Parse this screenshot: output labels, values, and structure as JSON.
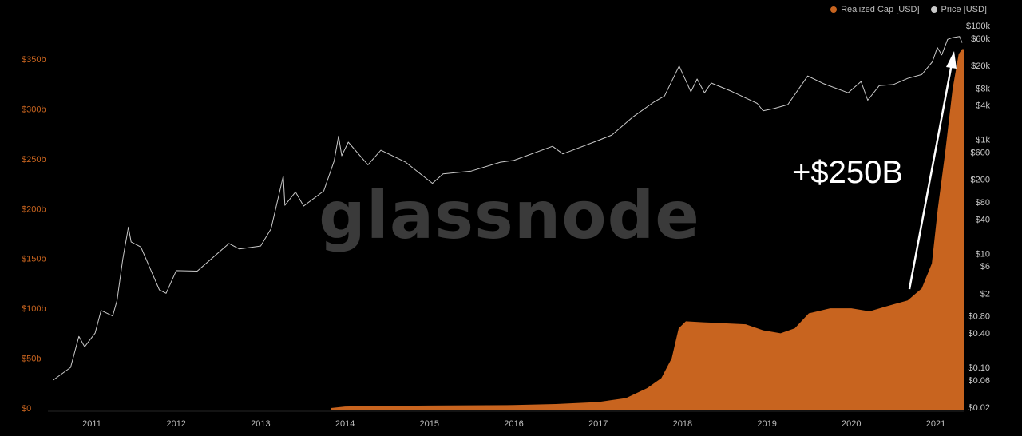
{
  "watermark": "glassnode",
  "annotation": "+$250B",
  "colors": {
    "background": "#000000",
    "realized_cap": "#c8641f",
    "price": "#c9c9c9",
    "left_axis": "#c8641f",
    "right_axis": "#c9c9c9",
    "x_axis": "#bdbdbd",
    "watermark": "#3a3a3a",
    "annotation": "#ffffff"
  },
  "chart_data": {
    "type": "area",
    "legend_position": "top-right",
    "grid": false,
    "x_ticks": [
      "2011",
      "2012",
      "2013",
      "2014",
      "2015",
      "2016",
      "2017",
      "2018",
      "2019",
      "2020",
      "2021"
    ],
    "y_left": {
      "ticks": [
        "$0",
        "$50b",
        "$100b",
        "$150b",
        "$200b",
        "$250b",
        "$300b",
        "$350b"
      ],
      "ylim": [
        0,
        350000000000
      ]
    },
    "y_right": {
      "scale": "log",
      "ticks": [
        "$100k",
        "$60k",
        "$20k",
        "$8k",
        "$4k",
        "$1k",
        "$600",
        "$200",
        "$80",
        "$40",
        "$10",
        "$6",
        "$2",
        "$0.80",
        "$0.40",
        "$0.10",
        "$0.06",
        "$0.02"
      ],
      "tick_values": [
        100000,
        60000,
        20000,
        8000,
        4000,
        1000,
        600,
        200,
        80,
        40,
        10,
        6,
        2,
        0.8,
        0.4,
        0.1,
        0.06,
        0.02
      ]
    },
    "series": [
      {
        "name": "Realized Cap [USD]",
        "axis": "left",
        "type": "area",
        "points": [
          [
            "2013-11-01",
            0
          ],
          [
            "2014-01-01",
            1.5
          ],
          [
            "2014-06-01",
            2.2
          ],
          [
            "2015-01-01",
            2.5
          ],
          [
            "2016-01-01",
            3
          ],
          [
            "2016-07-01",
            4
          ],
          [
            "2017-01-01",
            6
          ],
          [
            "2017-05-01",
            10
          ],
          [
            "2017-08-01",
            20
          ],
          [
            "2017-10-01",
            30
          ],
          [
            "2017-11-15",
            50
          ],
          [
            "2017-12-15",
            80
          ],
          [
            "2018-01-15",
            87
          ],
          [
            "2018-04-01",
            86
          ],
          [
            "2018-07-01",
            85
          ],
          [
            "2018-10-01",
            84
          ],
          [
            "2018-12-15",
            78
          ],
          [
            "2019-03-01",
            75
          ],
          [
            "2019-05-01",
            80
          ],
          [
            "2019-07-01",
            95
          ],
          [
            "2019-10-01",
            100
          ],
          [
            "2020-01-01",
            100
          ],
          [
            "2020-03-20",
            97
          ],
          [
            "2020-06-01",
            102
          ],
          [
            "2020-09-01",
            108
          ],
          [
            "2020-11-01",
            120
          ],
          [
            "2020-12-15",
            145
          ],
          [
            "2021-01-10",
            200
          ],
          [
            "2021-02-10",
            255
          ],
          [
            "2021-03-15",
            320
          ],
          [
            "2021-04-10",
            355
          ],
          [
            "2021-04-25",
            360
          ]
        ]
      },
      {
        "name": "Price [USD]",
        "axis": "right",
        "type": "line",
        "points": [
          [
            "2010-07-18",
            0.06
          ],
          [
            "2010-10-01",
            0.1
          ],
          [
            "2010-11-06",
            0.35
          ],
          [
            "2010-12-01",
            0.23
          ],
          [
            "2011-01-15",
            0.4
          ],
          [
            "2011-02-10",
            1.0
          ],
          [
            "2011-04-01",
            0.8
          ],
          [
            "2011-04-20",
            1.5
          ],
          [
            "2011-05-15",
            8
          ],
          [
            "2011-06-08",
            29
          ],
          [
            "2011-06-20",
            16
          ],
          [
            "2011-08-01",
            13
          ],
          [
            "2011-10-20",
            2.3
          ],
          [
            "2011-11-18",
            2.0
          ],
          [
            "2012-01-01",
            5
          ],
          [
            "2012-04-01",
            4.9
          ],
          [
            "2012-08-17",
            15
          ],
          [
            "2012-10-01",
            12
          ],
          [
            "2013-01-01",
            13.5
          ],
          [
            "2013-02-15",
            27
          ],
          [
            "2013-04-09",
            230
          ],
          [
            "2013-04-16",
            70
          ],
          [
            "2013-06-01",
            120
          ],
          [
            "2013-07-06",
            68
          ],
          [
            "2013-10-01",
            125
          ],
          [
            "2013-11-15",
            420
          ],
          [
            "2013-12-04",
            1150
          ],
          [
            "2013-12-18",
            520
          ],
          [
            "2014-01-15",
            900
          ],
          [
            "2014-04-10",
            360
          ],
          [
            "2014-06-05",
            650
          ],
          [
            "2014-09-20",
            400
          ],
          [
            "2015-01-14",
            170
          ],
          [
            "2015-03-01",
            250
          ],
          [
            "2015-07-01",
            280
          ],
          [
            "2015-11-04",
            400
          ],
          [
            "2016-01-01",
            430
          ],
          [
            "2016-06-17",
            760
          ],
          [
            "2016-08-01",
            560
          ],
          [
            "2016-12-31",
            960
          ],
          [
            "2017-03-01",
            1200
          ],
          [
            "2017-06-01",
            2500
          ],
          [
            "2017-09-01",
            4600
          ],
          [
            "2017-10-15",
            5800
          ],
          [
            "2017-12-17",
            19500
          ],
          [
            "2018-02-06",
            6900
          ],
          [
            "2018-03-05",
            11500
          ],
          [
            "2018-04-06",
            6600
          ],
          [
            "2018-05-05",
            9800
          ],
          [
            "2018-08-01",
            7000
          ],
          [
            "2018-11-20",
            4300
          ],
          [
            "2018-12-15",
            3200
          ],
          [
            "2019-02-01",
            3500
          ],
          [
            "2019-04-01",
            4100
          ],
          [
            "2019-06-26",
            13000
          ],
          [
            "2019-09-01",
            9600
          ],
          [
            "2019-12-18",
            6600
          ],
          [
            "2020-02-12",
            10400
          ],
          [
            "2020-03-12",
            4900
          ],
          [
            "2020-05-01",
            8800
          ],
          [
            "2020-07-01",
            9200
          ],
          [
            "2020-09-01",
            11800
          ],
          [
            "2020-11-01",
            13800
          ],
          [
            "2020-12-17",
            23000
          ],
          [
            "2021-01-08",
            41000
          ],
          [
            "2021-01-27",
            30500
          ],
          [
            "2021-02-21",
            57000
          ],
          [
            "2021-03-13",
            61000
          ],
          [
            "2021-04-14",
            64000
          ],
          [
            "2021-04-25",
            50000
          ]
        ]
      }
    ]
  }
}
